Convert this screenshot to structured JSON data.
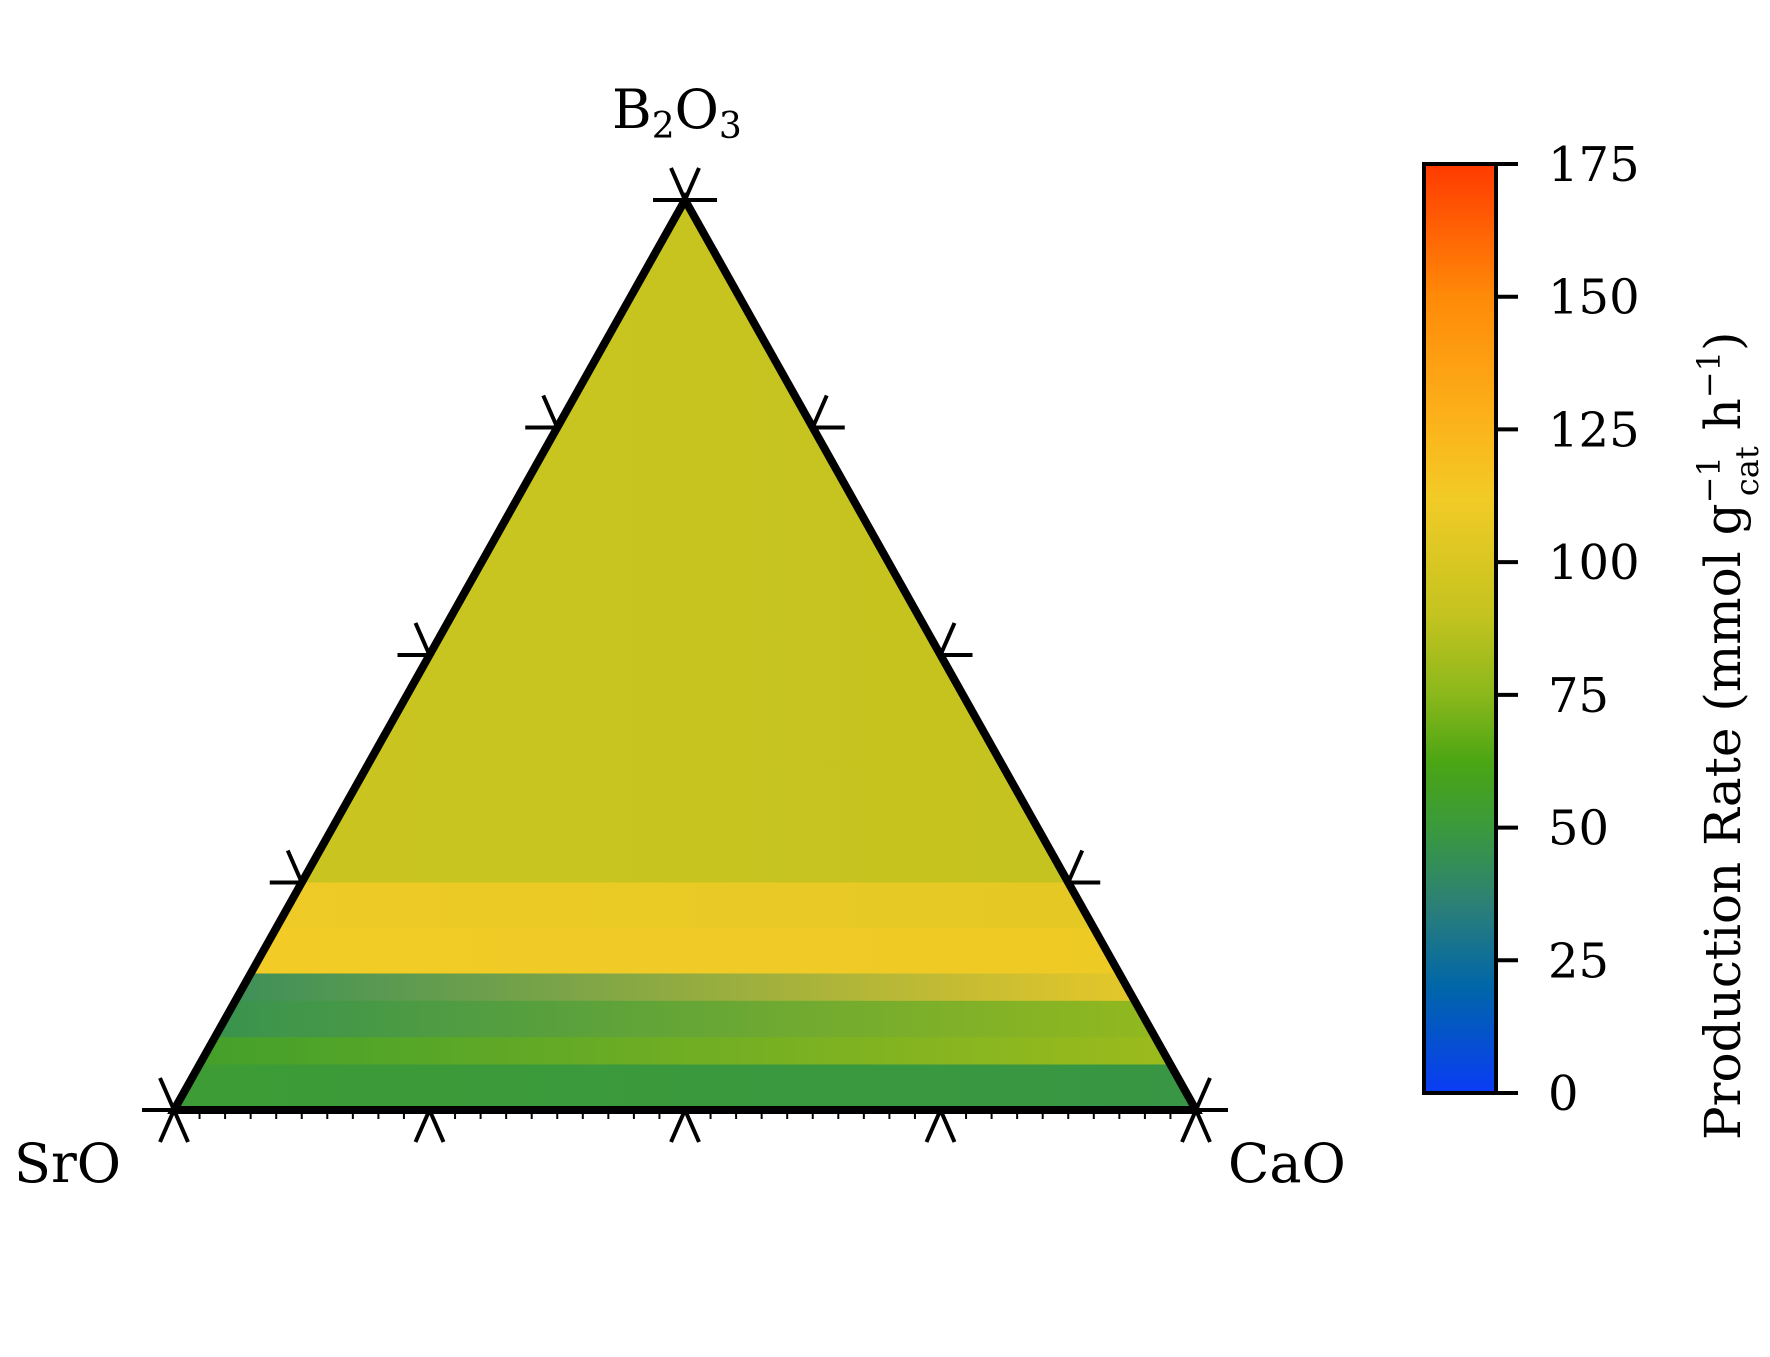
{
  "chart_data": {
    "type": "heatmap",
    "subtype": "ternary",
    "vertices": {
      "top": {
        "base": "B",
        "sub1": "2",
        "mid": "O",
        "sub2": "3"
      },
      "left": "SrO",
      "right": "CaO"
    },
    "colorbar": {
      "label_prefix": "Production Rate (mmol g",
      "label_sup1": "−1",
      "label_sub": "cat",
      "label_mid": " h",
      "label_sup2": "−1",
      "label_suffix": ")",
      "min": 0,
      "max": 175,
      "ticks": [
        0,
        25,
        50,
        75,
        100,
        125,
        150,
        175
      ],
      "tick_labels": [
        "0",
        "25",
        "50",
        "75",
        "100",
        "125",
        "150",
        "175"
      ],
      "colormap_stops": [
        {
          "value": 0,
          "color": "#0a3cf5"
        },
        {
          "value": 20,
          "color": "#0066a8"
        },
        {
          "value": 35,
          "color": "#2b7f78"
        },
        {
          "value": 50,
          "color": "#3a9a3c"
        },
        {
          "value": 62,
          "color": "#4aa514"
        },
        {
          "value": 75,
          "color": "#8bb81b"
        },
        {
          "value": 90,
          "color": "#c4c31f"
        },
        {
          "value": 112,
          "color": "#f2cb26"
        },
        {
          "value": 125,
          "color": "#fbb51b"
        },
        {
          "value": 150,
          "color": "#ff8a08"
        },
        {
          "value": 175,
          "color": "#ff3a00"
        }
      ]
    },
    "grid_ticks_fraction": [
      0,
      0.25,
      0.5,
      0.75,
      1.0
    ],
    "bands": [
      {
        "b2o3_min": 0.25,
        "b2o3_max": 1.0,
        "srO_side_value": 93,
        "caO_side_value": 90
      },
      {
        "b2o3_min": 0.2,
        "b2o3_max": 0.25,
        "srO_side_value": 111,
        "caO_side_value": 105
      },
      {
        "b2o3_min": 0.15,
        "b2o3_max": 0.2,
        "srO_side_value": 112,
        "caO_side_value": 110
      },
      {
        "b2o3_min": 0.12,
        "b2o3_max": 0.15,
        "srO_side_value": 42,
        "caO_side_value": 112
      },
      {
        "b2o3_min": 0.08,
        "b2o3_max": 0.12,
        "srO_side_value": 45,
        "caO_side_value": 78
      },
      {
        "b2o3_min": 0.05,
        "b2o3_max": 0.08,
        "srO_side_value": 55,
        "caO_side_value": 80
      },
      {
        "b2o3_min": 0.0,
        "b2o3_max": 0.05,
        "srO_side_value": 52,
        "caO_side_value": 48
      }
    ]
  }
}
